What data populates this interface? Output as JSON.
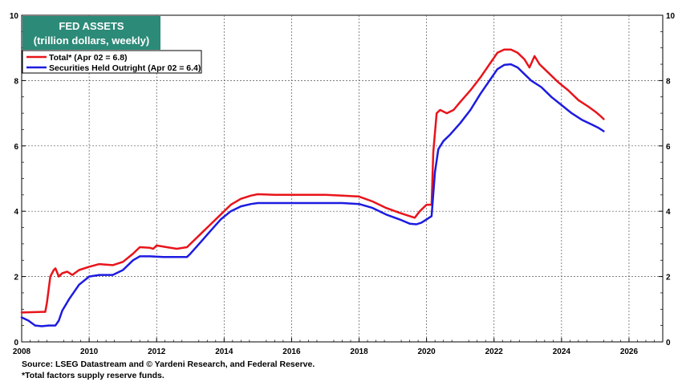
{
  "chart_data": {
    "type": "line",
    "title": "FED ASSETS",
    "subtitle": "(trillion dollars, weekly)",
    "xlabel": "",
    "ylabel": "",
    "xlim": [
      2008,
      2027
    ],
    "ylim": [
      0,
      10
    ],
    "x_ticks": [
      "2008",
      "2010",
      "2012",
      "2014",
      "2016",
      "2018",
      "2020",
      "2022",
      "2024",
      "2026"
    ],
    "y_ticks": [
      "0",
      "2",
      "4",
      "6",
      "8",
      "10"
    ],
    "legend_placement": "top-left",
    "grid": true,
    "series": [
      {
        "name": "Total* (Apr 02 = 6.8)",
        "color": "#e8141b",
        "points": [
          [
            2008.0,
            0.9
          ],
          [
            2008.6,
            0.92
          ],
          [
            2008.7,
            0.92
          ],
          [
            2008.75,
            1.2
          ],
          [
            2008.85,
            2.0
          ],
          [
            2008.95,
            2.2
          ],
          [
            2009.0,
            2.25
          ],
          [
            2009.1,
            2.0
          ],
          [
            2009.2,
            2.1
          ],
          [
            2009.35,
            2.15
          ],
          [
            2009.5,
            2.05
          ],
          [
            2009.7,
            2.2
          ],
          [
            2010.0,
            2.3
          ],
          [
            2010.3,
            2.38
          ],
          [
            2010.7,
            2.35
          ],
          [
            2011.0,
            2.45
          ],
          [
            2011.3,
            2.7
          ],
          [
            2011.5,
            2.9
          ],
          [
            2011.8,
            2.88
          ],
          [
            2011.9,
            2.85
          ],
          [
            2012.0,
            2.95
          ],
          [
            2012.3,
            2.9
          ],
          [
            2012.6,
            2.85
          ],
          [
            2012.9,
            2.9
          ],
          [
            2013.0,
            3.0
          ],
          [
            2013.3,
            3.3
          ],
          [
            2013.6,
            3.6
          ],
          [
            2013.9,
            3.9
          ],
          [
            2014.2,
            4.2
          ],
          [
            2014.5,
            4.38
          ],
          [
            2014.8,
            4.48
          ],
          [
            2015.0,
            4.52
          ],
          [
            2015.5,
            4.5
          ],
          [
            2016.0,
            4.5
          ],
          [
            2016.5,
            4.5
          ],
          [
            2017.0,
            4.5
          ],
          [
            2017.5,
            4.48
          ],
          [
            2018.0,
            4.45
          ],
          [
            2018.4,
            4.3
          ],
          [
            2018.8,
            4.1
          ],
          [
            2019.2,
            3.95
          ],
          [
            2019.5,
            3.85
          ],
          [
            2019.65,
            3.8
          ],
          [
            2019.8,
            4.0
          ],
          [
            2020.0,
            4.2
          ],
          [
            2020.15,
            4.2
          ],
          [
            2020.2,
            5.8
          ],
          [
            2020.3,
            7.0
          ],
          [
            2020.4,
            7.1
          ],
          [
            2020.6,
            7.0
          ],
          [
            2020.8,
            7.1
          ],
          [
            2021.0,
            7.35
          ],
          [
            2021.3,
            7.7
          ],
          [
            2021.6,
            8.1
          ],
          [
            2021.9,
            8.55
          ],
          [
            2022.1,
            8.85
          ],
          [
            2022.3,
            8.95
          ],
          [
            2022.5,
            8.95
          ],
          [
            2022.7,
            8.85
          ],
          [
            2022.9,
            8.65
          ],
          [
            2023.05,
            8.4
          ],
          [
            2023.2,
            8.75
          ],
          [
            2023.35,
            8.5
          ],
          [
            2023.6,
            8.25
          ],
          [
            2023.9,
            7.95
          ],
          [
            2024.2,
            7.7
          ],
          [
            2024.5,
            7.4
          ],
          [
            2024.8,
            7.2
          ],
          [
            2025.0,
            7.05
          ],
          [
            2025.15,
            6.92
          ],
          [
            2025.25,
            6.82
          ]
        ]
      },
      {
        "name": "Securities Held Outright (Apr 02 = 6.4)",
        "color": "#1d1be0",
        "points": [
          [
            2008.0,
            0.75
          ],
          [
            2008.2,
            0.65
          ],
          [
            2008.4,
            0.5
          ],
          [
            2008.6,
            0.48
          ],
          [
            2008.8,
            0.5
          ],
          [
            2009.0,
            0.5
          ],
          [
            2009.1,
            0.65
          ],
          [
            2009.2,
            0.95
          ],
          [
            2009.4,
            1.3
          ],
          [
            2009.7,
            1.75
          ],
          [
            2010.0,
            2.0
          ],
          [
            2010.3,
            2.05
          ],
          [
            2010.7,
            2.05
          ],
          [
            2011.0,
            2.2
          ],
          [
            2011.3,
            2.5
          ],
          [
            2011.5,
            2.62
          ],
          [
            2011.8,
            2.62
          ],
          [
            2012.2,
            2.6
          ],
          [
            2012.6,
            2.6
          ],
          [
            2012.9,
            2.6
          ],
          [
            2013.0,
            2.7
          ],
          [
            2013.3,
            3.05
          ],
          [
            2013.6,
            3.4
          ],
          [
            2013.9,
            3.75
          ],
          [
            2014.2,
            4.0
          ],
          [
            2014.5,
            4.15
          ],
          [
            2014.8,
            4.22
          ],
          [
            2015.0,
            4.25
          ],
          [
            2015.5,
            4.25
          ],
          [
            2016.0,
            4.25
          ],
          [
            2016.5,
            4.25
          ],
          [
            2017.0,
            4.25
          ],
          [
            2017.5,
            4.25
          ],
          [
            2018.0,
            4.22
          ],
          [
            2018.4,
            4.1
          ],
          [
            2018.8,
            3.9
          ],
          [
            2019.2,
            3.75
          ],
          [
            2019.5,
            3.62
          ],
          [
            2019.7,
            3.6
          ],
          [
            2019.85,
            3.65
          ],
          [
            2020.0,
            3.75
          ],
          [
            2020.15,
            3.85
          ],
          [
            2020.25,
            5.2
          ],
          [
            2020.35,
            5.9
          ],
          [
            2020.5,
            6.15
          ],
          [
            2020.7,
            6.35
          ],
          [
            2021.0,
            6.7
          ],
          [
            2021.3,
            7.1
          ],
          [
            2021.6,
            7.6
          ],
          [
            2021.9,
            8.05
          ],
          [
            2022.1,
            8.35
          ],
          [
            2022.3,
            8.48
          ],
          [
            2022.5,
            8.5
          ],
          [
            2022.7,
            8.4
          ],
          [
            2022.9,
            8.2
          ],
          [
            2023.1,
            8.0
          ],
          [
            2023.4,
            7.8
          ],
          [
            2023.7,
            7.5
          ],
          [
            2024.0,
            7.25
          ],
          [
            2024.3,
            7.0
          ],
          [
            2024.6,
            6.8
          ],
          [
            2024.9,
            6.65
          ],
          [
            2025.1,
            6.55
          ],
          [
            2025.25,
            6.45
          ]
        ]
      }
    ],
    "source_text": "Source: LSEG Datastream and © Yardeni Research, and Federal Reserve.",
    "note_text": "*Total factors supply reserve funds.",
    "title_box_color": "#2c8a78"
  }
}
